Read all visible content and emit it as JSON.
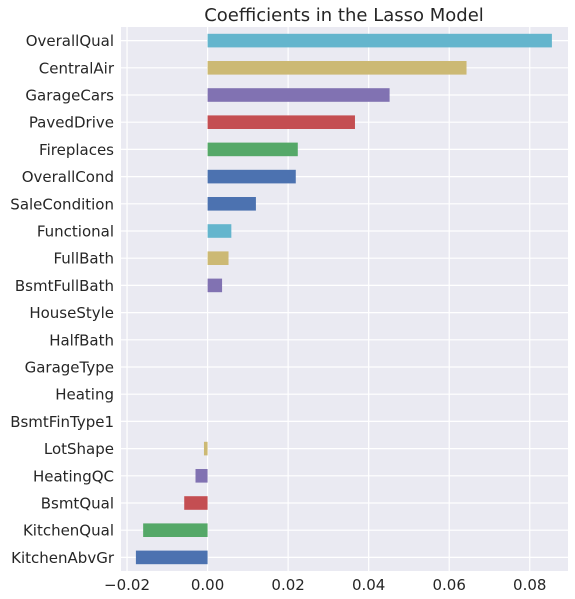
{
  "chart_data": {
    "type": "bar",
    "orientation": "horizontal",
    "title": "Coefficients in the Lasso Model",
    "xlabel": "",
    "ylabel": "",
    "xlim": [
      -0.0215,
      0.0895
    ],
    "xticks": [
      -0.02,
      0.0,
      0.02,
      0.04,
      0.06,
      0.08
    ],
    "xtick_labels": [
      "−0.02",
      "0.00",
      "0.02",
      "0.04",
      "0.06",
      "0.08"
    ],
    "grid": true,
    "background": "#EAEAF2",
    "categories": [
      "OverallQual",
      "CentralAir",
      "GarageCars",
      "PavedDrive",
      "Fireplaces",
      "OverallCond",
      "SaleCondition",
      "Functional",
      "FullBath",
      "BsmtFullBath",
      "HouseStyle",
      "HalfBath",
      "GarageType",
      "Heating",
      "BsmtFinType1",
      "LotShape",
      "HeatingQC",
      "BsmtQual",
      "KitchenQual",
      "KitchenAbvGr"
    ],
    "values": [
      0.0855,
      0.0643,
      0.0452,
      0.0366,
      0.0224,
      0.0219,
      0.012,
      0.0059,
      0.0052,
      0.0036,
      0.0,
      0.0,
      0.0,
      0.0,
      0.0,
      -0.0009,
      -0.003,
      -0.0058,
      -0.016,
      -0.0178
    ],
    "colors": [
      "#64B5CD",
      "#CCB974",
      "#8172B2",
      "#C44E52",
      "#55A868",
      "#4C72B0",
      "#4C72B0",
      "#64B5CD",
      "#CCB974",
      "#8172B2",
      "#C44E52",
      "#55A868",
      "#4C72B0",
      "#64B5CD",
      "#CCB974",
      "#CCB974",
      "#8172B2",
      "#C44E52",
      "#55A868",
      "#4C72B0"
    ]
  }
}
